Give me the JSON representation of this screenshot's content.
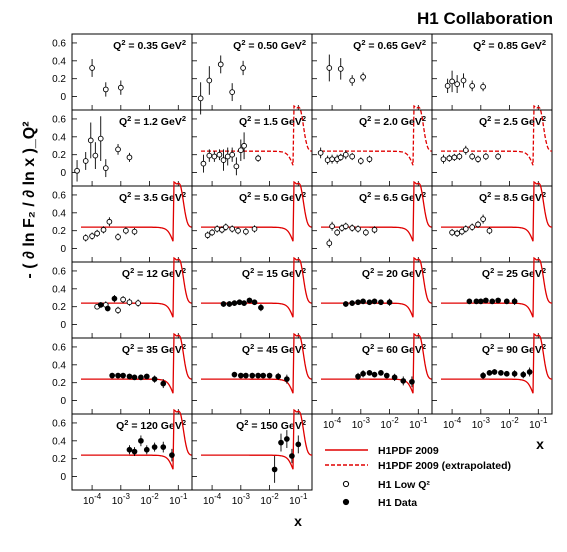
{
  "chart_data": {
    "type": "scatter",
    "title": "H1 Collaboration",
    "ylabel": "- ( ∂ ln F₂ / ∂ ln x )_Q²",
    "xlabel": "x",
    "xscale": "log",
    "xlim": [
      2e-05,
      0.3
    ],
    "ylim": [
      -0.15,
      0.7
    ],
    "y_ticks": [
      0,
      0.2,
      0.4,
      0.6
    ],
    "x_ticks": [
      "10-4",
      "10-3",
      "10-2",
      "10-1"
    ],
    "legend": {
      "position": "bottom-right",
      "entries": [
        {
          "label": "H1PDF 2009",
          "style": "solid",
          "color": "#e00000"
        },
        {
          "label": "H1PDF 2009 (extrapolated)",
          "style": "dashed",
          "color": "#e00000"
        },
        {
          "label": "H1 Low Q²",
          "marker": "open-circle"
        },
        {
          "label": "H1 Data",
          "marker": "filled-circle"
        }
      ]
    },
    "panels": [
      {
        "q2": "0.35",
        "unit": "GeV²",
        "curve": "none",
        "low_q2": [
          [
            0.0001,
            0.32,
            0.1
          ],
          [
            0.0003,
            0.08,
            0.08
          ],
          [
            0.001,
            0.1,
            0.08
          ]
        ],
        "h1": []
      },
      {
        "q2": "0.50",
        "unit": "GeV²",
        "curve": "none",
        "low_q2": [
          [
            4e-05,
            -0.02,
            0.18
          ],
          [
            8e-05,
            0.18,
            0.16
          ],
          [
            0.0002,
            0.36,
            0.1
          ],
          [
            0.0005,
            0.05,
            0.1
          ],
          [
            0.0012,
            0.32,
            0.08
          ]
        ],
        "h1": []
      },
      {
        "q2": "0.65",
        "unit": "GeV²",
        "curve": "none",
        "low_q2": [
          [
            8e-05,
            0.32,
            0.15
          ],
          [
            0.0002,
            0.31,
            0.12
          ],
          [
            0.0005,
            0.18,
            0.06
          ],
          [
            0.0012,
            0.22,
            0.05
          ]
        ],
        "h1": []
      },
      {
        "q2": "0.85",
        "unit": "GeV²",
        "curve": "none",
        "low_q2": [
          [
            7e-05,
            0.12,
            0.08
          ],
          [
            0.0001,
            0.17,
            0.12
          ],
          [
            0.00015,
            0.14,
            0.1
          ],
          [
            0.00025,
            0.18,
            0.08
          ],
          [
            0.0005,
            0.12,
            0.06
          ],
          [
            0.0012,
            0.11,
            0.05
          ]
        ],
        "h1": []
      },
      {
        "q2": "1.2",
        "unit": "GeV²",
        "curve": "none",
        "low_q2": [
          [
            3e-05,
            0.02,
            0.12
          ],
          [
            6e-05,
            0.13,
            0.1
          ],
          [
            9e-05,
            0.36,
            0.2
          ],
          [
            0.00013,
            0.19,
            0.15
          ],
          [
            0.0002,
            0.38,
            0.25
          ],
          [
            0.0003,
            0.05,
            0.1
          ],
          [
            0.0008,
            0.26,
            0.06
          ],
          [
            0.002,
            0.17,
            0.05
          ]
        ],
        "h1": []
      },
      {
        "q2": "1.5",
        "unit": "GeV²",
        "curve": "dashed",
        "low_q2": [
          [
            5e-05,
            0.1,
            0.1
          ],
          [
            8e-05,
            0.19,
            0.07
          ],
          [
            0.00012,
            0.18,
            0.06
          ],
          [
            0.00018,
            0.2,
            0.06
          ],
          [
            0.00025,
            0.14,
            0.12
          ],
          [
            0.00035,
            0.18,
            0.1
          ],
          [
            0.0005,
            0.2,
            0.08
          ],
          [
            0.0007,
            0.07,
            0.1
          ],
          [
            0.001,
            0.25,
            0.12
          ],
          [
            0.0013,
            0.3,
            0.15
          ],
          [
            0.004,
            0.16,
            0.04
          ]
        ],
        "h1": []
      },
      {
        "q2": "2.0",
        "unit": "GeV²",
        "curve": "dashed",
        "low_q2": [
          [
            4e-05,
            0.22,
            0.06
          ],
          [
            7e-05,
            0.14,
            0.05
          ],
          [
            0.0001,
            0.15,
            0.05
          ],
          [
            0.00015,
            0.15,
            0.05
          ],
          [
            0.0002,
            0.17,
            0.04
          ],
          [
            0.0003,
            0.2,
            0.05
          ],
          [
            0.0005,
            0.18,
            0.04
          ],
          [
            0.001,
            0.13,
            0.04
          ],
          [
            0.002,
            0.15,
            0.04
          ]
        ],
        "h1": []
      },
      {
        "q2": "2.5",
        "unit": "GeV²",
        "curve": "dashed",
        "low_q2": [
          [
            5e-05,
            0.15,
            0.05
          ],
          [
            8e-05,
            0.16,
            0.04
          ],
          [
            0.00012,
            0.17,
            0.04
          ],
          [
            0.00018,
            0.18,
            0.04
          ],
          [
            0.0003,
            0.25,
            0.05
          ],
          [
            0.0005,
            0.18,
            0.04
          ],
          [
            0.0008,
            0.15,
            0.04
          ],
          [
            0.0015,
            0.18,
            0.04
          ],
          [
            0.004,
            0.18,
            0.04
          ]
        ],
        "h1": []
      },
      {
        "q2": "3.5",
        "unit": "GeV²",
        "curve": "solid",
        "low_q2": [
          [
            6e-05,
            0.12,
            0.04
          ],
          [
            0.0001,
            0.14,
            0.04
          ],
          [
            0.00015,
            0.17,
            0.04
          ],
          [
            0.00025,
            0.21,
            0.04
          ],
          [
            0.0004,
            0.3,
            0.05
          ],
          [
            0.0008,
            0.13,
            0.04
          ],
          [
            0.0015,
            0.2,
            0.04
          ],
          [
            0.003,
            0.19,
            0.04
          ]
        ],
        "h1": []
      },
      {
        "q2": "5.0",
        "unit": "GeV²",
        "curve": "solid",
        "low_q2": [
          [
            7e-05,
            0.15,
            0.04
          ],
          [
            0.0001,
            0.18,
            0.04
          ],
          [
            0.00015,
            0.22,
            0.04
          ],
          [
            0.00022,
            0.21,
            0.04
          ],
          [
            0.0003,
            0.24,
            0.04
          ],
          [
            0.0005,
            0.22,
            0.04
          ],
          [
            0.0008,
            0.2,
            0.04
          ],
          [
            0.0015,
            0.19,
            0.04
          ],
          [
            0.003,
            0.22,
            0.04
          ]
        ],
        "h1": []
      },
      {
        "q2": "6.5",
        "unit": "GeV²",
        "curve": "solid",
        "low_q2": [
          [
            8e-05,
            0.06,
            0.05
          ],
          [
            0.0001,
            0.25,
            0.05
          ],
          [
            0.00015,
            0.18,
            0.04
          ],
          [
            0.00022,
            0.23,
            0.04
          ],
          [
            0.0003,
            0.25,
            0.04
          ],
          [
            0.0005,
            0.23,
            0.04
          ],
          [
            0.0008,
            0.22,
            0.04
          ],
          [
            0.0015,
            0.18,
            0.04
          ],
          [
            0.003,
            0.21,
            0.04
          ]
        ],
        "h1": []
      },
      {
        "q2": "8.5",
        "unit": "GeV²",
        "curve": "solid",
        "low_q2": [
          [
            0.0001,
            0.18,
            0.04
          ],
          [
            0.00015,
            0.17,
            0.04
          ],
          [
            0.00022,
            0.19,
            0.04
          ],
          [
            0.0003,
            0.22,
            0.04
          ],
          [
            0.0005,
            0.24,
            0.04
          ],
          [
            0.0008,
            0.27,
            0.04
          ],
          [
            0.0012,
            0.33,
            0.05
          ],
          [
            0.002,
            0.2,
            0.04
          ]
        ],
        "h1": []
      },
      {
        "q2": "12",
        "unit": "GeV²",
        "curve": "solid",
        "low_q2": [
          [
            0.00015,
            0.2,
            0.03
          ],
          [
            0.0003,
            0.22,
            0.04
          ],
          [
            0.0008,
            0.16,
            0.04
          ],
          [
            0.0012,
            0.28,
            0.04
          ],
          [
            0.002,
            0.25,
            0.04
          ],
          [
            0.004,
            0.24,
            0.04
          ]
        ],
        "h1": [
          [
            0.0002,
            0.22,
            0.03
          ],
          [
            0.00035,
            0.18,
            0.03
          ],
          [
            0.0006,
            0.29,
            0.04
          ]
        ]
      },
      {
        "q2": "15",
        "unit": "GeV²",
        "curve": "solid",
        "low_q2": [],
        "h1": [
          [
            0.00025,
            0.23,
            0.03
          ],
          [
            0.0004,
            0.23,
            0.03
          ],
          [
            0.0006,
            0.24,
            0.03
          ],
          [
            0.0009,
            0.25,
            0.03
          ],
          [
            0.0013,
            0.24,
            0.03
          ],
          [
            0.002,
            0.27,
            0.03
          ],
          [
            0.003,
            0.25,
            0.03
          ],
          [
            0.005,
            0.19,
            0.04
          ]
        ]
      },
      {
        "q2": "20",
        "unit": "GeV²",
        "curve": "solid",
        "low_q2": [],
        "h1": [
          [
            0.0003,
            0.23,
            0.03
          ],
          [
            0.0005,
            0.24,
            0.03
          ],
          [
            0.0008,
            0.25,
            0.03
          ],
          [
            0.0012,
            0.26,
            0.03
          ],
          [
            0.002,
            0.25,
            0.03
          ],
          [
            0.003,
            0.26,
            0.03
          ],
          [
            0.005,
            0.25,
            0.03
          ],
          [
            0.01,
            0.25,
            0.04
          ]
        ]
      },
      {
        "q2": "25",
        "unit": "GeV²",
        "curve": "solid",
        "low_q2": [],
        "h1": [
          [
            0.0004,
            0.26,
            0.03
          ],
          [
            0.0007,
            0.26,
            0.03
          ],
          [
            0.001,
            0.26,
            0.03
          ],
          [
            0.0015,
            0.27,
            0.03
          ],
          [
            0.0025,
            0.26,
            0.03
          ],
          [
            0.004,
            0.27,
            0.03
          ],
          [
            0.008,
            0.26,
            0.03
          ],
          [
            0.015,
            0.26,
            0.04
          ]
        ]
      },
      {
        "q2": "35",
        "unit": "GeV²",
        "curve": "solid",
        "low_q2": [],
        "h1": [
          [
            0.0005,
            0.28,
            0.03
          ],
          [
            0.0008,
            0.28,
            0.03
          ],
          [
            0.0012,
            0.28,
            0.03
          ],
          [
            0.002,
            0.27,
            0.03
          ],
          [
            0.003,
            0.26,
            0.03
          ],
          [
            0.005,
            0.26,
            0.03
          ],
          [
            0.008,
            0.27,
            0.03
          ],
          [
            0.015,
            0.24,
            0.04
          ],
          [
            0.03,
            0.19,
            0.05
          ]
        ]
      },
      {
        "q2": "45",
        "unit": "GeV²",
        "curve": "solid",
        "low_q2": [],
        "h1": [
          [
            0.0006,
            0.29,
            0.03
          ],
          [
            0.001,
            0.28,
            0.03
          ],
          [
            0.0015,
            0.28,
            0.03
          ],
          [
            0.0025,
            0.28,
            0.03
          ],
          [
            0.004,
            0.28,
            0.03
          ],
          [
            0.006,
            0.28,
            0.03
          ],
          [
            0.01,
            0.28,
            0.03
          ],
          [
            0.02,
            0.27,
            0.04
          ],
          [
            0.04,
            0.24,
            0.05
          ]
        ]
      },
      {
        "q2": "60",
        "unit": "GeV²",
        "curve": "solid",
        "low_q2": [],
        "h1": [
          [
            0.0008,
            0.27,
            0.04
          ],
          [
            0.0012,
            0.3,
            0.04
          ],
          [
            0.002,
            0.31,
            0.03
          ],
          [
            0.003,
            0.29,
            0.03
          ],
          [
            0.005,
            0.31,
            0.03
          ],
          [
            0.008,
            0.28,
            0.03
          ],
          [
            0.015,
            0.26,
            0.04
          ],
          [
            0.03,
            0.22,
            0.05
          ],
          [
            0.06,
            0.21,
            0.06
          ]
        ]
      },
      {
        "q2": "90",
        "unit": "GeV²",
        "curve": "solid",
        "low_q2": [],
        "h1": [
          [
            0.0012,
            0.28,
            0.04
          ],
          [
            0.002,
            0.31,
            0.03
          ],
          [
            0.003,
            0.32,
            0.03
          ],
          [
            0.005,
            0.31,
            0.03
          ],
          [
            0.008,
            0.3,
            0.03
          ],
          [
            0.015,
            0.3,
            0.04
          ],
          [
            0.03,
            0.29,
            0.04
          ],
          [
            0.05,
            0.32,
            0.05
          ]
        ]
      },
      {
        "q2": "120",
        "unit": "GeV²",
        "curve": "solid",
        "low_q2": [],
        "h1": [
          [
            0.002,
            0.3,
            0.05
          ],
          [
            0.003,
            0.28,
            0.05
          ],
          [
            0.005,
            0.4,
            0.06
          ],
          [
            0.008,
            0.3,
            0.05
          ],
          [
            0.015,
            0.33,
            0.05
          ],
          [
            0.03,
            0.33,
            0.06
          ],
          [
            0.06,
            0.24,
            0.07
          ]
        ]
      },
      {
        "q2": "150",
        "unit": "GeV²",
        "curve": "solid",
        "low_q2": [],
        "h1": [
          [
            0.015,
            0.08,
            0.15
          ],
          [
            0.025,
            0.38,
            0.1
          ],
          [
            0.04,
            0.42,
            0.1
          ],
          [
            0.06,
            0.23,
            0.08
          ],
          [
            0.1,
            0.36,
            0.1
          ]
        ]
      }
    ]
  }
}
